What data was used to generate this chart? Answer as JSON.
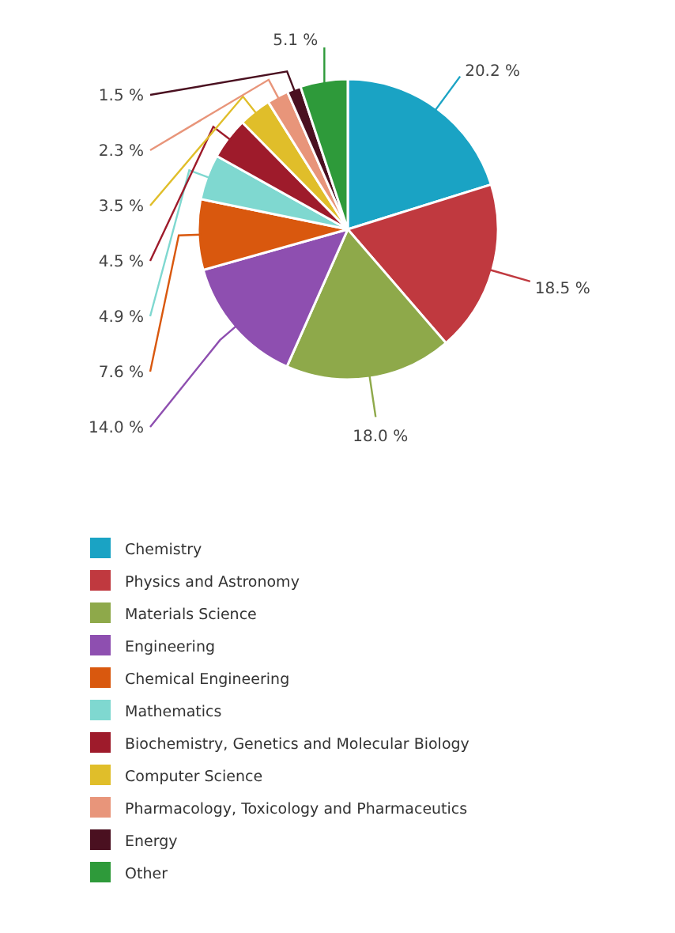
{
  "chart_data": {
    "type": "pie",
    "categories": [
      "Chemistry",
      "Physics and Astronomy",
      "Materials Science",
      "Engineering",
      "Chemical Engineering",
      "Mathematics",
      "Biochemistry, Genetics and Molecular Biology",
      "Computer Science",
      "Pharmacology, Toxicology and Pharmaceutics",
      "Energy",
      "Other"
    ],
    "values": [
      20.2,
      18.5,
      18.0,
      14.0,
      7.6,
      4.9,
      4.5,
      3.5,
      2.3,
      1.5,
      5.1
    ],
    "value_labels": [
      "20.2 %",
      "18.5 %",
      "18.0 %",
      "14.0 %",
      "7.6 %",
      "4.9 %",
      "4.5 %",
      "3.5 %",
      "2.3 %",
      "1.5 %",
      "5.1 %"
    ],
    "colors": [
      "#1aa3c4",
      "#c0393f",
      "#8ea94a",
      "#8e4fb0",
      "#d9580e",
      "#7fd8d0",
      "#9e1b2b",
      "#e0be2a",
      "#e8957a",
      "#4a1020",
      "#2e9a3a"
    ],
    "legend": "bottom"
  }
}
